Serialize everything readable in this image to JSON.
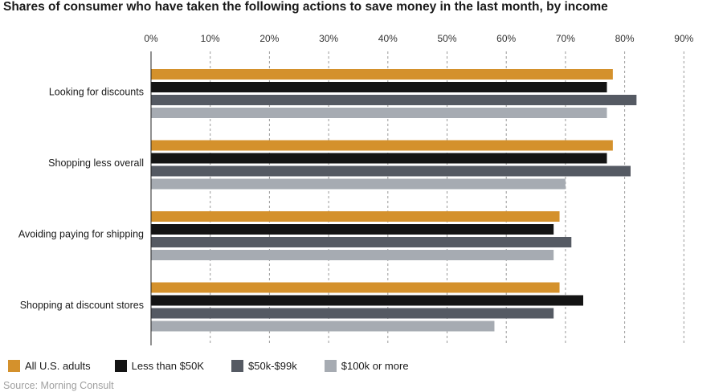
{
  "chart_data": {
    "type": "bar",
    "orientation": "horizontal",
    "title": "Shares of consumer who have taken the following actions to save money in the last month, by income",
    "source": "Source: Morning Consult",
    "categories": [
      "Looking for discounts",
      "Shopping less overall",
      "Avoiding paying for shipping",
      "Shopping at discount stores"
    ],
    "series": [
      {
        "name": "All U.S. adults",
        "color": "#d4912c",
        "values": [
          78,
          78,
          69,
          69
        ]
      },
      {
        "name": "Less than $50K",
        "color": "#141414",
        "values": [
          77,
          77,
          68,
          73
        ]
      },
      {
        "name": "$50k-$99k",
        "color": "#555a63",
        "values": [
          82,
          81,
          71,
          68
        ]
      },
      {
        "name": "$100k or more",
        "color": "#a6abb2",
        "values": [
          77,
          70,
          68,
          58
        ]
      }
    ],
    "xlim": [
      0,
      90
    ],
    "xticks": [
      "0%",
      "10%",
      "20%",
      "30%",
      "40%",
      "50%",
      "60%",
      "70%",
      "80%",
      "90%"
    ],
    "xlabel": "",
    "ylabel": "",
    "grid": true,
    "legend_position": "bottom-left"
  }
}
